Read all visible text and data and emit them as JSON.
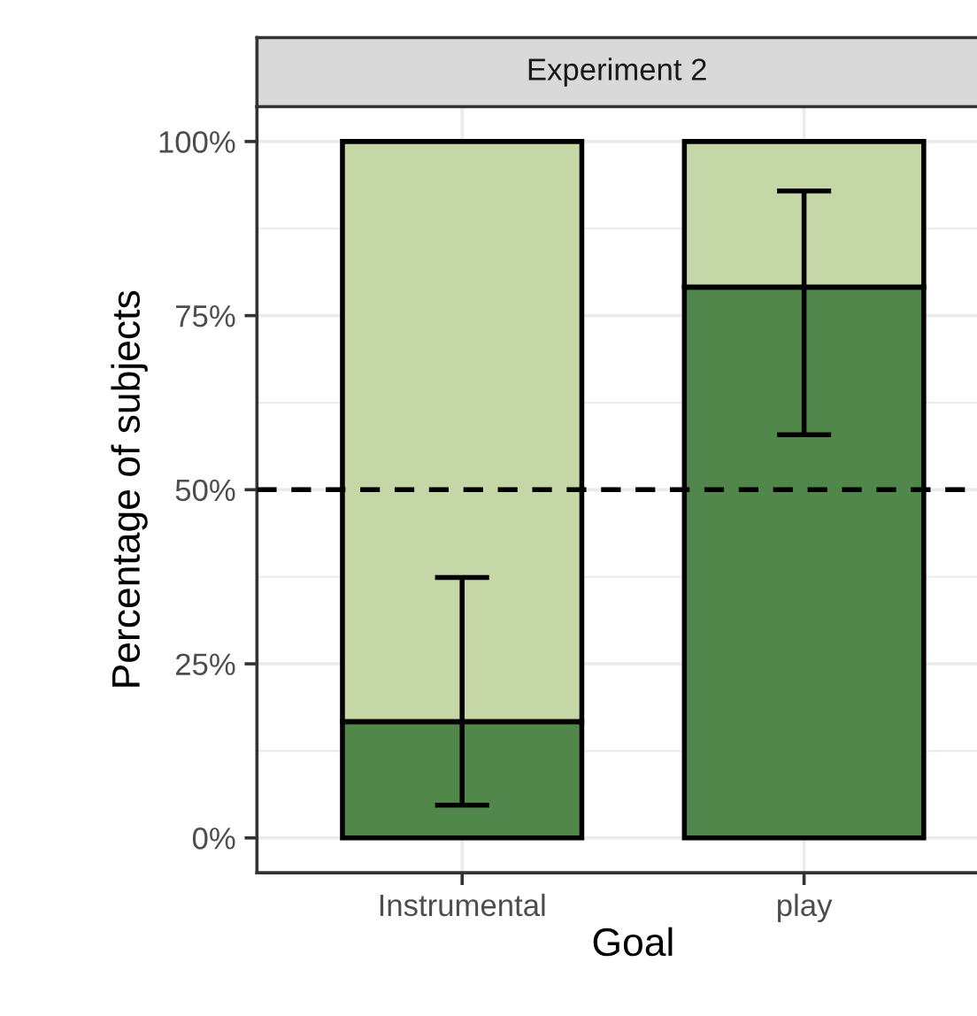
{
  "chart_data": {
    "type": "bar",
    "title": "Experiment 2",
    "xlabel": "Goal",
    "ylabel": "Percentage of subjects",
    "categories": [
      "Instrumental",
      "play"
    ],
    "stacked": true,
    "series": [
      {
        "color": "#52874b",
        "values": [
          16.7,
          79.1
        ],
        "errors": [
          [
            4.7,
            37.4
          ],
          [
            57.9,
            92.9
          ]
        ]
      },
      {
        "color": "#c6d7a7",
        "values": [
          83.3,
          20.9
        ]
      }
    ],
    "ylim": [
      -5,
      105
    ],
    "yticks": [
      {
        "value": 0,
        "label": "0%"
      },
      {
        "value": 25,
        "label": "25%"
      },
      {
        "value": 50,
        "label": "50%"
      },
      {
        "value": 75,
        "label": "75%"
      },
      {
        "value": 100,
        "label": "100%"
      }
    ],
    "grid": true,
    "ref_lines": [
      {
        "axis": "y",
        "value": 50,
        "color": "#000000",
        "line_style": "dashed"
      }
    ]
  }
}
